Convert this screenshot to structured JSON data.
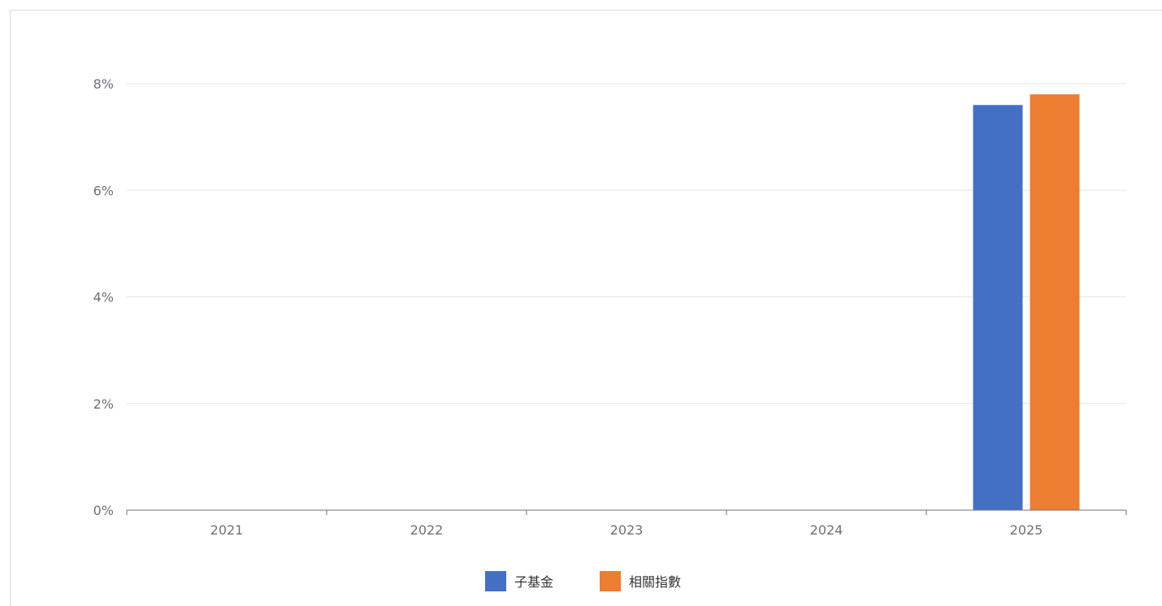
{
  "chart_data": {
    "type": "bar",
    "title": "",
    "xlabel": "",
    "ylabel": "",
    "categories": [
      "2021",
      "2022",
      "2023",
      "2024",
      "2025"
    ],
    "series": [
      {
        "name": "子基金",
        "color": "#4470c4",
        "values": [
          0,
          0,
          0,
          0,
          7.6
        ]
      },
      {
        "name": "相關指數",
        "color": "#ed7d31",
        "values": [
          0,
          0,
          0,
          0,
          7.8
        ]
      }
    ],
    "ylim": [
      0,
      8
    ],
    "yticks": [
      0,
      2,
      4,
      6,
      8
    ],
    "ytick_suffix": "%",
    "grid": true,
    "legend": "bottom-center"
  }
}
